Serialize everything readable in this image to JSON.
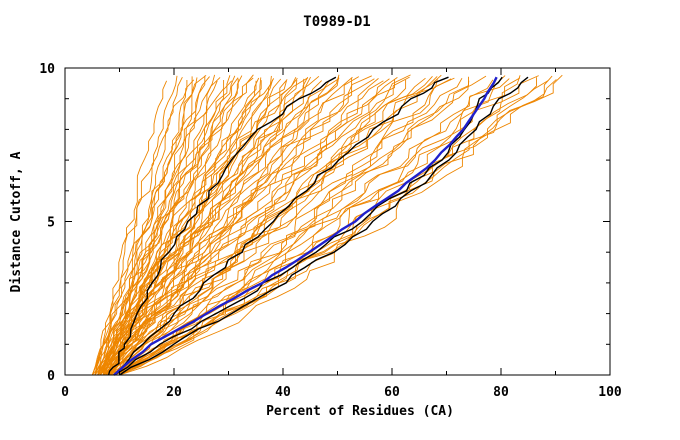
{
  "chart_data": {
    "type": "line",
    "title": "T0989-D1",
    "xlabel": "Percent of Residues (CA)",
    "ylabel": "Distance Cutoff, A",
    "xlim": [
      0,
      100
    ],
    "ylim": [
      0,
      10
    ],
    "x_major_ticks": [
      0,
      20,
      40,
      60,
      80,
      100
    ],
    "x_minor_ticks": [
      10,
      30,
      50,
      70,
      90
    ],
    "y_major_ticks": [
      0,
      5,
      10
    ],
    "y_minor_ticks": [
      1,
      2,
      3,
      4,
      6,
      7,
      8,
      9
    ],
    "grid": false,
    "legend": "none",
    "colors": {
      "ensemble": "#ee8600",
      "highlight": "#000000",
      "best": "#2020cc",
      "frame": "#000000"
    },
    "seed": 7,
    "curve_top_y": 9.7,
    "ensemble_curves": [
      [
        6,
        18,
        1.1
      ],
      [
        5.5,
        20,
        1.05
      ],
      [
        7,
        21,
        1.2
      ],
      [
        6,
        22,
        0.95
      ],
      [
        8,
        23,
        1.1
      ],
      [
        5,
        24,
        1.0
      ],
      [
        7.5,
        24,
        1.15
      ],
      [
        6.5,
        25,
        0.9
      ],
      [
        8,
        26,
        1.05
      ],
      [
        5.5,
        26,
        1.2
      ],
      [
        7,
        27,
        1.0
      ],
      [
        6,
        28,
        1.1
      ],
      [
        8.5,
        28,
        0.95
      ],
      [
        5,
        29,
        1.05
      ],
      [
        7,
        30,
        1.15
      ],
      [
        6.5,
        30,
        0.9
      ],
      [
        8,
        31,
        1.0
      ],
      [
        5.5,
        32,
        1.1
      ],
      [
        7,
        32,
        1.2
      ],
      [
        6,
        33,
        0.95
      ],
      [
        8,
        34,
        1.05
      ],
      [
        5,
        34,
        1.15
      ],
      [
        7.5,
        35,
        1.0
      ],
      [
        6.5,
        36,
        1.1
      ],
      [
        8,
        36,
        0.9
      ],
      [
        5.5,
        37,
        1.05
      ],
      [
        7,
        38,
        1.15
      ],
      [
        6,
        38,
        1.0
      ],
      [
        8.5,
        39,
        1.1
      ],
      [
        5,
        40,
        0.95
      ],
      [
        7,
        40,
        1.05
      ],
      [
        6.5,
        41,
        1.15
      ],
      [
        8,
        42,
        1.0
      ],
      [
        5.5,
        42,
        1.1
      ],
      [
        7,
        43,
        0.9
      ],
      [
        6,
        44,
        1.05
      ],
      [
        8,
        44,
        1.15
      ],
      [
        5.5,
        45,
        1.0
      ],
      [
        7.5,
        46,
        1.1
      ],
      [
        6,
        46,
        0.95
      ],
      [
        8,
        47,
        1.0
      ],
      [
        6,
        48,
        1.1
      ],
      [
        7,
        49,
        0.9
      ],
      [
        9,
        50,
        1.05
      ],
      [
        6.5,
        51,
        1.15
      ],
      [
        8,
        52,
        1.0
      ],
      [
        7,
        53,
        1.1
      ],
      [
        6,
        54,
        0.95
      ],
      [
        8.5,
        55,
        1.05
      ],
      [
        7,
        56,
        1.15
      ],
      [
        9,
        57,
        0.85
      ],
      [
        6,
        58,
        1.05
      ],
      [
        8,
        59,
        1.1
      ],
      [
        7.5,
        60,
        0.95
      ],
      [
        6.5,
        61,
        1.05
      ],
      [
        9,
        62,
        0.9
      ],
      [
        7,
        63,
        1.1
      ],
      [
        8,
        64,
        1.0
      ],
      [
        6,
        65,
        0.95
      ],
      [
        9,
        66,
        1.05
      ],
      [
        7,
        67,
        0.9
      ],
      [
        8,
        68,
        1.0
      ],
      [
        6.5,
        69,
        1.05
      ],
      [
        9,
        70,
        0.85
      ],
      [
        7,
        71,
        0.95
      ],
      [
        8,
        72,
        0.9
      ],
      [
        9,
        74,
        0.85
      ],
      [
        7,
        75,
        0.95
      ],
      [
        10,
        76,
        0.9
      ],
      [
        8,
        78,
        0.85
      ],
      [
        9,
        80,
        0.9
      ],
      [
        7.5,
        82,
        0.8
      ],
      [
        10,
        83,
        0.9
      ],
      [
        8,
        84,
        0.85
      ],
      [
        9,
        86,
        0.8
      ],
      [
        10,
        87,
        0.85
      ],
      [
        8.5,
        88,
        0.8
      ],
      [
        9,
        90,
        0.85
      ],
      [
        10,
        91,
        0.8
      ],
      [
        8,
        92,
        0.85
      ]
    ],
    "highlight_curves": [
      [
        [
          8,
          0
        ],
        [
          10,
          0.5
        ],
        [
          11,
          1
        ],
        [
          13,
          2
        ],
        [
          16,
          3
        ],
        [
          19,
          4
        ],
        [
          23,
          5
        ],
        [
          27,
          6
        ],
        [
          31,
          7
        ],
        [
          36,
          8
        ],
        [
          43,
          9
        ],
        [
          50,
          9.7
        ]
      ],
      [
        [
          9,
          0
        ],
        [
          14,
          1
        ],
        [
          20,
          2
        ],
        [
          26,
          3
        ],
        [
          32,
          4
        ],
        [
          38,
          5
        ],
        [
          44,
          6
        ],
        [
          50,
          7
        ],
        [
          57,
          8
        ],
        [
          64,
          9
        ],
        [
          70,
          9.7
        ]
      ],
      [
        [
          9,
          0
        ],
        [
          18,
          1
        ],
        [
          28,
          2
        ],
        [
          37,
          3
        ],
        [
          46,
          4
        ],
        [
          54,
          5
        ],
        [
          62,
          6
        ],
        [
          69,
          7
        ],
        [
          73,
          8
        ],
        [
          76,
          9
        ],
        [
          80,
          9.7
        ]
      ],
      [
        [
          10,
          0
        ],
        [
          20,
          1
        ],
        [
          30,
          2
        ],
        [
          40,
          3
        ],
        [
          49,
          4
        ],
        [
          57,
          5
        ],
        [
          64,
          6
        ],
        [
          70,
          7
        ],
        [
          75,
          8
        ],
        [
          80,
          9
        ],
        [
          85,
          9.7
        ]
      ]
    ],
    "best_curve": [
      [
        9,
        0
      ],
      [
        16,
        1
      ],
      [
        26,
        2
      ],
      [
        36,
        3
      ],
      [
        45,
        4
      ],
      [
        53,
        5
      ],
      [
        61,
        6
      ],
      [
        68,
        7
      ],
      [
        73,
        8
      ],
      [
        77,
        9
      ],
      [
        79,
        9.7
      ]
    ]
  }
}
